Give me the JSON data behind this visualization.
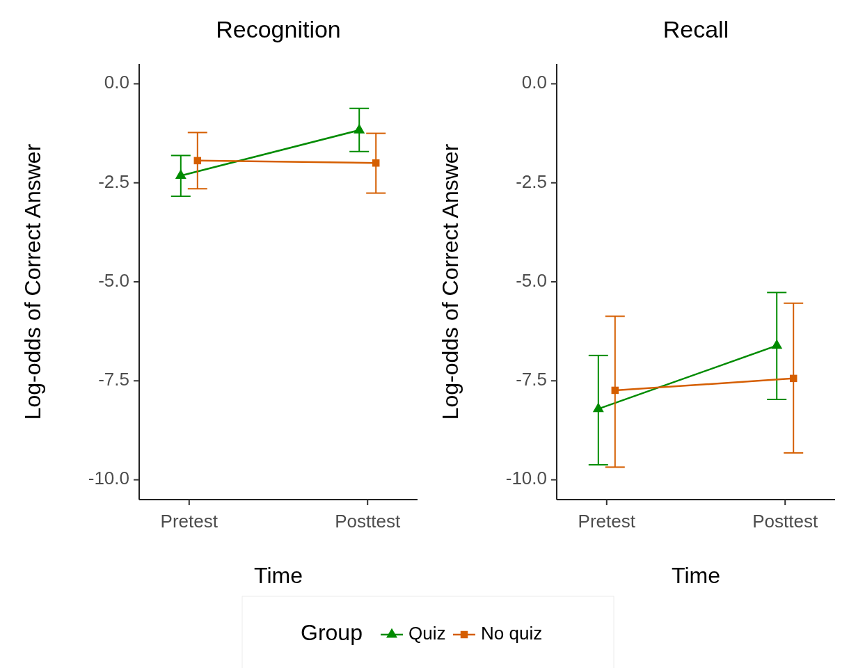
{
  "chart_data": [
    {
      "type": "line",
      "title": "Recognition",
      "xlabel": "Time",
      "ylabel": "Log-odds of Correct Answer",
      "categories": [
        "Pretest",
        "Posttest"
      ],
      "ylim": [
        -10.5,
        0.5
      ],
      "yticks": [
        {
          "value": 0,
          "label": "0.0"
        },
        {
          "value": -2.5,
          "label": "-2.5"
        },
        {
          "value": -5,
          "label": "-5.0"
        },
        {
          "value": -7.5,
          "label": "-7.5"
        },
        {
          "value": -10,
          "label": "-10.0"
        }
      ],
      "grid": false,
      "legend": "bottom",
      "legend_title": "Group",
      "series": [
        {
          "name": "Quiz",
          "color": "#008b00",
          "marker": "triangle",
          "values": [
            -2.32,
            -1.17
          ],
          "errors": [
            [
              -2.84,
              -1.81
            ],
            [
              -1.71,
              -0.62
            ]
          ]
        },
        {
          "name": "No quiz",
          "color": "#d55e00",
          "marker": "square",
          "values": [
            -1.94,
            -2.0
          ],
          "errors": [
            [
              -2.65,
              -1.23
            ],
            [
              -2.76,
              -1.25
            ]
          ]
        }
      ]
    },
    {
      "type": "line",
      "title": "Recall",
      "xlabel": "Time",
      "ylabel": "Log-odds of Correct Answer",
      "categories": [
        "Pretest",
        "Posttest"
      ],
      "ylim": [
        -10.5,
        0.5
      ],
      "yticks": [
        {
          "value": 0,
          "label": "0.0"
        },
        {
          "value": -2.5,
          "label": "-2.5"
        },
        {
          "value": -5,
          "label": "-5.0"
        },
        {
          "value": -7.5,
          "label": "-7.5"
        },
        {
          "value": -10,
          "label": "-10.0"
        }
      ],
      "grid": false,
      "series": [
        {
          "color": "#008b00",
          "marker": "triangle",
          "values": [
            -8.21,
            -6.61
          ],
          "errors": [
            [
              -9.62,
              -6.86
            ],
            [
              -7.97,
              -5.27
            ]
          ]
        },
        {
          "color": "#d55e00",
          "marker": "square",
          "values": [
            -7.74,
            -7.44
          ],
          "errors": [
            [
              -9.68,
              -5.87
            ],
            [
              -9.32,
              -5.54
            ]
          ]
        }
      ]
    }
  ]
}
